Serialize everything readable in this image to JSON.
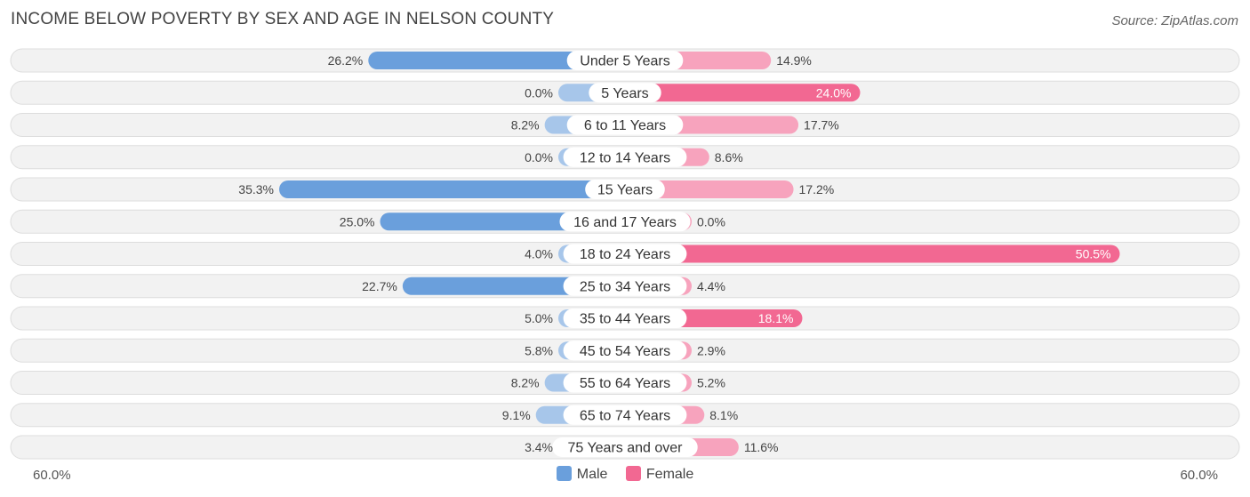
{
  "title": "INCOME BELOW POVERTY BY SEX AND AGE IN NELSON COUNTY",
  "source": "Source: ZipAtlas.com",
  "axis": {
    "left_label": "60.0%",
    "right_label": "60.0%"
  },
  "legend": {
    "male": "Male",
    "female": "Female"
  },
  "colors": {
    "male_strong": "#6a9fdc",
    "male_light": "#a7c6ea",
    "female_strong": "#f26892",
    "female_light": "#f7a3bd",
    "row_bg": "#f2f2f2",
    "row_border": "#dddddd"
  },
  "chart_data": {
    "type": "bar",
    "orientation": "horizontal-diverging",
    "title": "INCOME BELOW POVERTY BY SEX AND AGE IN NELSON COUNTY",
    "xlim": [
      -60,
      60
    ],
    "categories": [
      "Under 5 Years",
      "5 Years",
      "6 to 11 Years",
      "12 to 14 Years",
      "15 Years",
      "16 and 17 Years",
      "18 to 24 Years",
      "25 to 34 Years",
      "35 to 44 Years",
      "45 to 54 Years",
      "55 to 64 Years",
      "65 to 74 Years",
      "75 Years and over"
    ],
    "series": [
      {
        "name": "Male",
        "values": [
          26.2,
          0.0,
          8.2,
          0.0,
          35.3,
          25.0,
          4.0,
          22.7,
          5.0,
          5.8,
          8.2,
          9.1,
          3.4
        ],
        "labels": [
          "26.2%",
          "0.0%",
          "8.2%",
          "0.0%",
          "35.3%",
          "25.0%",
          "4.0%",
          "22.7%",
          "5.0%",
          "5.8%",
          "8.2%",
          "9.1%",
          "3.4%"
        ]
      },
      {
        "name": "Female",
        "values": [
          14.9,
          24.0,
          17.7,
          8.6,
          17.2,
          0.0,
          50.5,
          4.4,
          18.1,
          2.9,
          5.2,
          8.1,
          11.6
        ],
        "labels": [
          "14.9%",
          "24.0%",
          "17.7%",
          "8.6%",
          "17.2%",
          "0.0%",
          "50.5%",
          "4.4%",
          "18.1%",
          "2.9%",
          "5.2%",
          "8.1%",
          "11.6%"
        ]
      }
    ]
  }
}
